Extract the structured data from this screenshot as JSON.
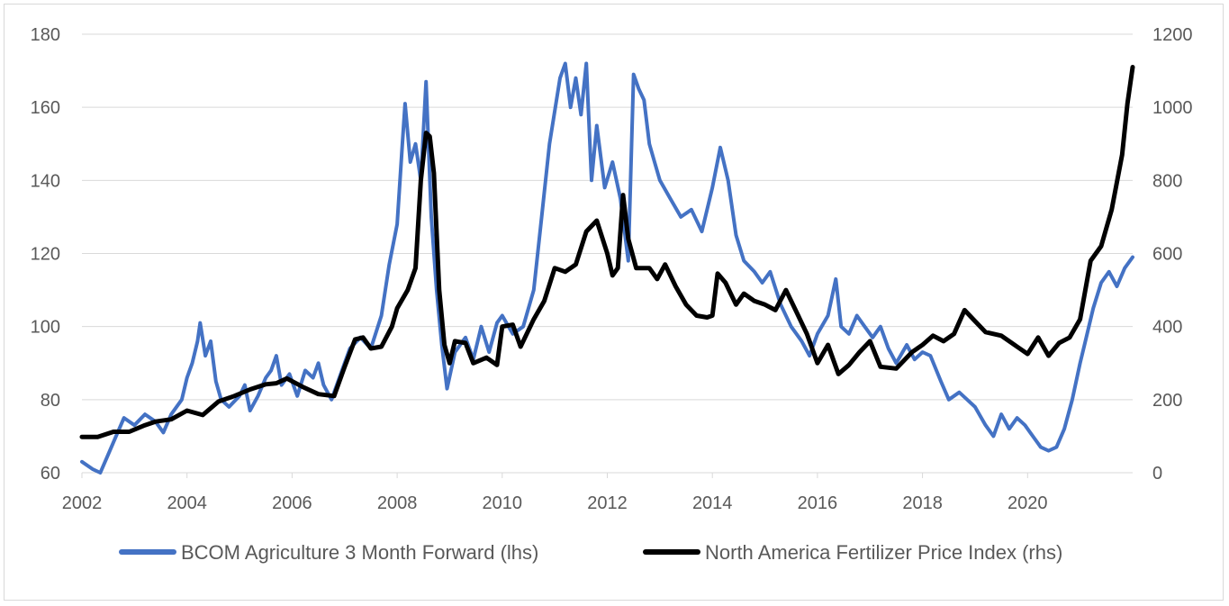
{
  "chart_data": {
    "type": "line",
    "title": "",
    "xlabel": "",
    "ylabel": "",
    "y2label": "",
    "xlim": [
      2002,
      2022
    ],
    "ylim": [
      60,
      180
    ],
    "y2lim": [
      0,
      1200
    ],
    "x_ticks": [
      "2002",
      "2004",
      "2006",
      "2008",
      "2010",
      "2012",
      "2014",
      "2016",
      "2018",
      "2020"
    ],
    "y_ticks": [
      "60",
      "80",
      "100",
      "120",
      "140",
      "160",
      "180"
    ],
    "y2_ticks": [
      "0",
      "200",
      "400",
      "600",
      "800",
      "1000",
      "1200"
    ],
    "grid": "horizontal",
    "legend": "bottom",
    "series": [
      {
        "name": "BCOM Agriculture 3 Month Forward (lhs)",
        "axis": "left",
        "color": "#4472c4",
        "points": [
          [
            2002.0,
            63
          ],
          [
            2002.2,
            61
          ],
          [
            2002.35,
            60
          ],
          [
            2002.5,
            65
          ],
          [
            2002.65,
            70
          ],
          [
            2002.8,
            75
          ],
          [
            2003.0,
            73
          ],
          [
            2003.2,
            76
          ],
          [
            2003.4,
            74
          ],
          [
            2003.55,
            71
          ],
          [
            2003.7,
            76
          ],
          [
            2003.9,
            80
          ],
          [
            2004.0,
            86
          ],
          [
            2004.1,
            90
          ],
          [
            2004.2,
            96
          ],
          [
            2004.25,
            101
          ],
          [
            2004.35,
            92
          ],
          [
            2004.45,
            96
          ],
          [
            2004.55,
            85
          ],
          [
            2004.65,
            80
          ],
          [
            2004.8,
            78
          ],
          [
            2005.0,
            81
          ],
          [
            2005.1,
            84
          ],
          [
            2005.2,
            77
          ],
          [
            2005.35,
            81
          ],
          [
            2005.5,
            86
          ],
          [
            2005.6,
            88
          ],
          [
            2005.7,
            92
          ],
          [
            2005.8,
            84
          ],
          [
            2005.95,
            87
          ],
          [
            2006.1,
            81
          ],
          [
            2006.25,
            88
          ],
          [
            2006.4,
            86
          ],
          [
            2006.5,
            90
          ],
          [
            2006.6,
            84
          ],
          [
            2006.75,
            80
          ],
          [
            2006.9,
            86
          ],
          [
            2007.1,
            94
          ],
          [
            2007.3,
            97
          ],
          [
            2007.5,
            94
          ],
          [
            2007.7,
            103
          ],
          [
            2007.85,
            117
          ],
          [
            2008.0,
            128
          ],
          [
            2008.1,
            150
          ],
          [
            2008.15,
            161
          ],
          [
            2008.25,
            145
          ],
          [
            2008.35,
            150
          ],
          [
            2008.45,
            140
          ],
          [
            2008.55,
            167
          ],
          [
            2008.65,
            130
          ],
          [
            2008.75,
            110
          ],
          [
            2008.85,
            95
          ],
          [
            2008.95,
            83
          ],
          [
            2009.1,
            93
          ],
          [
            2009.3,
            97
          ],
          [
            2009.45,
            91
          ],
          [
            2009.6,
            100
          ],
          [
            2009.75,
            93
          ],
          [
            2009.9,
            101
          ],
          [
            2010.0,
            103
          ],
          [
            2010.2,
            98
          ],
          [
            2010.4,
            100
          ],
          [
            2010.6,
            110
          ],
          [
            2010.75,
            130
          ],
          [
            2010.9,
            150
          ],
          [
            2011.1,
            168
          ],
          [
            2011.2,
            172
          ],
          [
            2011.3,
            160
          ],
          [
            2011.4,
            168
          ],
          [
            2011.5,
            158
          ],
          [
            2011.6,
            172
          ],
          [
            2011.7,
            140
          ],
          [
            2011.8,
            155
          ],
          [
            2011.95,
            138
          ],
          [
            2012.1,
            145
          ],
          [
            2012.25,
            135
          ],
          [
            2012.4,
            118
          ],
          [
            2012.5,
            169
          ],
          [
            2012.6,
            165
          ],
          [
            2012.7,
            162
          ],
          [
            2012.8,
            150
          ],
          [
            2012.9,
            145
          ],
          [
            2013.0,
            140
          ],
          [
            2013.2,
            135
          ],
          [
            2013.4,
            130
          ],
          [
            2013.6,
            132
          ],
          [
            2013.8,
            126
          ],
          [
            2014.0,
            138
          ],
          [
            2014.15,
            149
          ],
          [
            2014.3,
            140
          ],
          [
            2014.45,
            125
          ],
          [
            2014.6,
            118
          ],
          [
            2014.8,
            115
          ],
          [
            2014.95,
            112
          ],
          [
            2015.1,
            115
          ],
          [
            2015.3,
            106
          ],
          [
            2015.5,
            100
          ],
          [
            2015.7,
            96
          ],
          [
            2015.85,
            92
          ],
          [
            2016.0,
            98
          ],
          [
            2016.2,
            103
          ],
          [
            2016.35,
            113
          ],
          [
            2016.45,
            100
          ],
          [
            2016.6,
            98
          ],
          [
            2016.75,
            103
          ],
          [
            2016.9,
            100
          ],
          [
            2017.05,
            97
          ],
          [
            2017.2,
            100
          ],
          [
            2017.35,
            94
          ],
          [
            2017.5,
            90
          ],
          [
            2017.7,
            95
          ],
          [
            2017.85,
            91
          ],
          [
            2018.0,
            93
          ],
          [
            2018.15,
            92
          ],
          [
            2018.35,
            85
          ],
          [
            2018.5,
            80
          ],
          [
            2018.7,
            82
          ],
          [
            2018.85,
            80
          ],
          [
            2019.0,
            78
          ],
          [
            2019.2,
            73
          ],
          [
            2019.35,
            70
          ],
          [
            2019.5,
            76
          ],
          [
            2019.65,
            72
          ],
          [
            2019.8,
            75
          ],
          [
            2019.95,
            73
          ],
          [
            2020.1,
            70
          ],
          [
            2020.25,
            67
          ],
          [
            2020.4,
            66
          ],
          [
            2020.55,
            67
          ],
          [
            2020.7,
            72
          ],
          [
            2020.85,
            80
          ],
          [
            2021.0,
            90
          ],
          [
            2021.1,
            96
          ],
          [
            2021.25,
            105
          ],
          [
            2021.4,
            112
          ],
          [
            2021.55,
            115
          ],
          [
            2021.7,
            111
          ],
          [
            2021.85,
            116
          ],
          [
            2022.0,
            119
          ]
        ]
      },
      {
        "name": "North America Fertilizer Price Index (rhs)",
        "axis": "right",
        "color": "#000000",
        "points": [
          [
            2002.0,
            98
          ],
          [
            2002.3,
            98
          ],
          [
            2002.6,
            112
          ],
          [
            2002.9,
            112
          ],
          [
            2003.2,
            130
          ],
          [
            2003.4,
            140
          ],
          [
            2003.7,
            146
          ],
          [
            2004.0,
            170
          ],
          [
            2004.3,
            158
          ],
          [
            2004.6,
            195
          ],
          [
            2004.9,
            210
          ],
          [
            2005.2,
            228
          ],
          [
            2005.5,
            242
          ],
          [
            2005.7,
            245
          ],
          [
            2005.9,
            258
          ],
          [
            2006.2,
            235
          ],
          [
            2006.5,
            215
          ],
          [
            2006.8,
            210
          ],
          [
            2007.0,
            290
          ],
          [
            2007.2,
            365
          ],
          [
            2007.35,
            370
          ],
          [
            2007.5,
            340
          ],
          [
            2007.7,
            345
          ],
          [
            2007.9,
            400
          ],
          [
            2008.0,
            450
          ],
          [
            2008.2,
            500
          ],
          [
            2008.35,
            560
          ],
          [
            2008.45,
            800
          ],
          [
            2008.55,
            930
          ],
          [
            2008.62,
            920
          ],
          [
            2008.7,
            820
          ],
          [
            2008.8,
            500
          ],
          [
            2008.9,
            350
          ],
          [
            2009.0,
            300
          ],
          [
            2009.1,
            360
          ],
          [
            2009.3,
            355
          ],
          [
            2009.45,
            300
          ],
          [
            2009.7,
            315
          ],
          [
            2009.9,
            295
          ],
          [
            2010.0,
            400
          ],
          [
            2010.2,
            405
          ],
          [
            2010.35,
            345
          ],
          [
            2010.6,
            420
          ],
          [
            2010.8,
            470
          ],
          [
            2011.0,
            560
          ],
          [
            2011.2,
            550
          ],
          [
            2011.4,
            570
          ],
          [
            2011.6,
            660
          ],
          [
            2011.8,
            690
          ],
          [
            2012.0,
            600
          ],
          [
            2012.1,
            540
          ],
          [
            2012.2,
            560
          ],
          [
            2012.3,
            760
          ],
          [
            2012.4,
            640
          ],
          [
            2012.55,
            560
          ],
          [
            2012.8,
            560
          ],
          [
            2012.95,
            530
          ],
          [
            2013.1,
            570
          ],
          [
            2013.3,
            510
          ],
          [
            2013.5,
            460
          ],
          [
            2013.7,
            430
          ],
          [
            2013.9,
            425
          ],
          [
            2014.0,
            430
          ],
          [
            2014.1,
            545
          ],
          [
            2014.25,
            520
          ],
          [
            2014.45,
            460
          ],
          [
            2014.6,
            490
          ],
          [
            2014.8,
            470
          ],
          [
            2015.0,
            460
          ],
          [
            2015.2,
            445
          ],
          [
            2015.4,
            500
          ],
          [
            2015.6,
            440
          ],
          [
            2015.8,
            380
          ],
          [
            2016.0,
            300
          ],
          [
            2016.2,
            350
          ],
          [
            2016.4,
            270
          ],
          [
            2016.6,
            295
          ],
          [
            2016.8,
            330
          ],
          [
            2017.0,
            360
          ],
          [
            2017.2,
            290
          ],
          [
            2017.5,
            285
          ],
          [
            2017.8,
            330
          ],
          [
            2018.0,
            350
          ],
          [
            2018.2,
            375
          ],
          [
            2018.4,
            360
          ],
          [
            2018.6,
            380
          ],
          [
            2018.8,
            445
          ],
          [
            2019.0,
            415
          ],
          [
            2019.2,
            385
          ],
          [
            2019.5,
            375
          ],
          [
            2019.8,
            345
          ],
          [
            2020.0,
            325
          ],
          [
            2020.2,
            370
          ],
          [
            2020.4,
            320
          ],
          [
            2020.6,
            355
          ],
          [
            2020.8,
            370
          ],
          [
            2021.0,
            420
          ],
          [
            2021.2,
            580
          ],
          [
            2021.4,
            620
          ],
          [
            2021.6,
            720
          ],
          [
            2021.8,
            870
          ],
          [
            2021.9,
            1010
          ],
          [
            2021.95,
            1060
          ],
          [
            2022.0,
            1110
          ]
        ]
      }
    ]
  }
}
